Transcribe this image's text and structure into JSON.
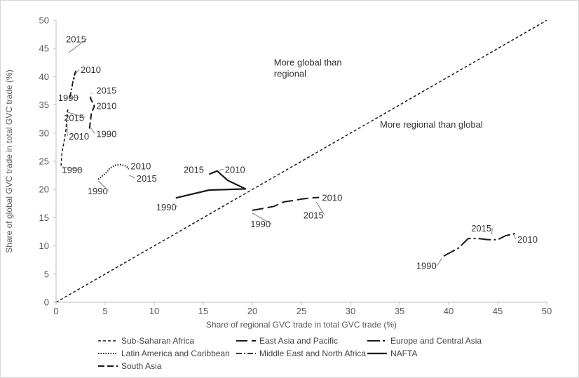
{
  "chart_data": {
    "type": "line",
    "title": "",
    "xlabel": "Share of regional GVC trade in total GVC trade (%)",
    "ylabel": "Share of global GVC trade in total GVC trade (%)",
    "xlim": [
      0,
      50
    ],
    "ylim": [
      0,
      50
    ],
    "xticks": [
      "0",
      "5",
      "10",
      "15",
      "20",
      "25",
      "30",
      "35",
      "40",
      "45",
      "50"
    ],
    "yticks": [
      "0",
      "5",
      "10",
      "15",
      "20",
      "25",
      "30",
      "35",
      "40",
      "45",
      "50"
    ],
    "grid": false,
    "legend_placement": "bottom",
    "diagonal": {
      "x": [
        0,
        50
      ],
      "y": [
        0,
        50
      ]
    },
    "region_labels": [
      {
        "text": "More global than regional",
        "lines": [
          "More global than",
          "regional"
        ],
        "x": 22.2,
        "y": 42.0
      },
      {
        "text": "More regional than global",
        "lines": [
          "More regional than global"
        ],
        "x": 33.0,
        "y": 31.0
      }
    ],
    "series": [
      {
        "name": "Sub-Saharan Africa",
        "dash": "4,3",
        "width": 1.5,
        "x": [
          0.5,
          0.6,
          0.8,
          1.0,
          1.1,
          1.2
        ],
        "y": [
          24.2,
          26.5,
          28.4,
          30.5,
          32.8,
          34.2
        ]
      },
      {
        "name": "East Asia and Pacific",
        "dash": "16,6",
        "width": 2,
        "x": [
          20.0,
          21.0,
          22.2,
          23.2,
          24.0,
          25.0,
          26.0,
          26.8
        ],
        "y": [
          16.3,
          16.6,
          17.0,
          17.8,
          18.0,
          18.3,
          18.5,
          18.6
        ]
      },
      {
        "name": "Europe and Central Asia",
        "dash": "18,4,3,4",
        "width": 2,
        "x": [
          39.5,
          41.0,
          42.0,
          43.0,
          44.0,
          45.0,
          45.8,
          46.8
        ],
        "y": [
          8.2,
          9.6,
          11.3,
          11.3,
          11.1,
          11.1,
          11.8,
          12.2
        ]
      },
      {
        "name": "Latin America and Caribbean",
        "dash": "1.5,2",
        "width": 2,
        "x": [
          4.3,
          5.0,
          5.5,
          6.0,
          6.6,
          7.2,
          7.4
        ],
        "y": [
          21.8,
          22.8,
          23.8,
          24.3,
          24.4,
          24.1,
          23.6
        ]
      },
      {
        "name": "Middle East and North Africa",
        "dash": "8,3,2,3",
        "width": 1.8,
        "x": [
          1.4,
          1.6,
          1.8,
          2.0,
          1.8
        ],
        "y": [
          36.3,
          38.0,
          40.0,
          41.0,
          39.5
        ]
      },
      {
        "name": "NAFTA",
        "dash": "",
        "width": 2.2,
        "x": [
          12.2,
          15.6,
          19.3,
          17.5,
          16.4,
          15.6
        ],
        "y": [
          18.5,
          19.9,
          20.1,
          21.6,
          23.3,
          22.7
        ]
      },
      {
        "name": "South Asia",
        "dash": "9,4",
        "width": 2,
        "x": [
          3.4,
          3.6,
          3.9,
          3.5,
          3.6
        ],
        "y": [
          30.8,
          33.5,
          34.8,
          36.2,
          37.0
        ]
      }
    ],
    "annotations": [
      {
        "text": "2015",
        "x": 1.3,
        "y": 44.3,
        "tx": 1.0,
        "ty": 46.7
      },
      {
        "text": "2010",
        "x": 2.0,
        "y": 40.5,
        "tx": 2.5,
        "ty": 41.3
      },
      {
        "text": "1990",
        "x": 1.5,
        "y": 36.3,
        "tx": 0.2,
        "ty": 36.3
      },
      {
        "text": "2015",
        "x": 3.7,
        "y": 37.2,
        "tx": 4.1,
        "ty": 37.6
      },
      {
        "text": "2010",
        "x": 4.0,
        "y": 35.0,
        "tx": 4.1,
        "ty": 34.9
      },
      {
        "text": "1990",
        "x": 3.5,
        "y": 31.0,
        "tx": 4.1,
        "ty": 29.9
      },
      {
        "text": "2015",
        "x": 1.0,
        "y": 33.8,
        "tx": 0.8,
        "ty": 32.8
      },
      {
        "text": "2010",
        "x": 1.1,
        "y": 32.6,
        "tx": 1.3,
        "ty": 29.5
      },
      {
        "text": "1990",
        "x": 0.6,
        "y": 24.0,
        "tx": 0.6,
        "ty": 23.5
      },
      {
        "text": "2010",
        "x": 7.3,
        "y": 24.3,
        "tx": 7.6,
        "ty": 24.2
      },
      {
        "text": "2015",
        "x": 7.4,
        "y": 22.6,
        "tx": 8.2,
        "ty": 22.0
      },
      {
        "text": "1990",
        "x": 4.3,
        "y": 21.5,
        "tx": 3.2,
        "ty": 19.8
      },
      {
        "text": "2015",
        "x": 15.4,
        "y": 23.4,
        "tx": 13.0,
        "ty": 23.6
      },
      {
        "text": "2010",
        "x": 16.6,
        "y": 23.4,
        "tx": 17.2,
        "ty": 23.6
      },
      {
        "text": "1990",
        "x": 12.0,
        "y": 17.5,
        "tx": 10.2,
        "ty": 16.9
      },
      {
        "text": "2010",
        "x": 27.0,
        "y": 18.6,
        "tx": 27.1,
        "ty": 18.6
      },
      {
        "text": "2015",
        "x": 26.5,
        "y": 17.8,
        "tx": 25.2,
        "ty": 15.5
      },
      {
        "text": "1990",
        "x": 20.0,
        "y": 15.8,
        "tx": 19.8,
        "ty": 13.9
      },
      {
        "text": "2015",
        "x": 44.4,
        "y": 12.0,
        "tx": 42.3,
        "ty": 13.2
      },
      {
        "text": "2010",
        "x": 46.6,
        "y": 12.0,
        "tx": 47.0,
        "ty": 11.2
      },
      {
        "text": "1990",
        "x": 39.3,
        "y": 7.8,
        "tx": 36.7,
        "ty": 6.5
      }
    ],
    "legend": [
      {
        "label": "Sub-Saharan Africa",
        "series": 0
      },
      {
        "label": "East Asia and Pacific",
        "series": 1
      },
      {
        "label": "Europe and Central Asia",
        "series": 2
      },
      {
        "label": "Latin America and Caribbean",
        "series": 3
      },
      {
        "label": "Middle East and North Africa",
        "series": 4
      },
      {
        "label": "NAFTA",
        "series": 5
      },
      {
        "label": "South Asia",
        "series": 6
      }
    ],
    "colors": {
      "line": "#1a1a1a",
      "axis": "#bfbfbf",
      "text": "#595959"
    }
  }
}
